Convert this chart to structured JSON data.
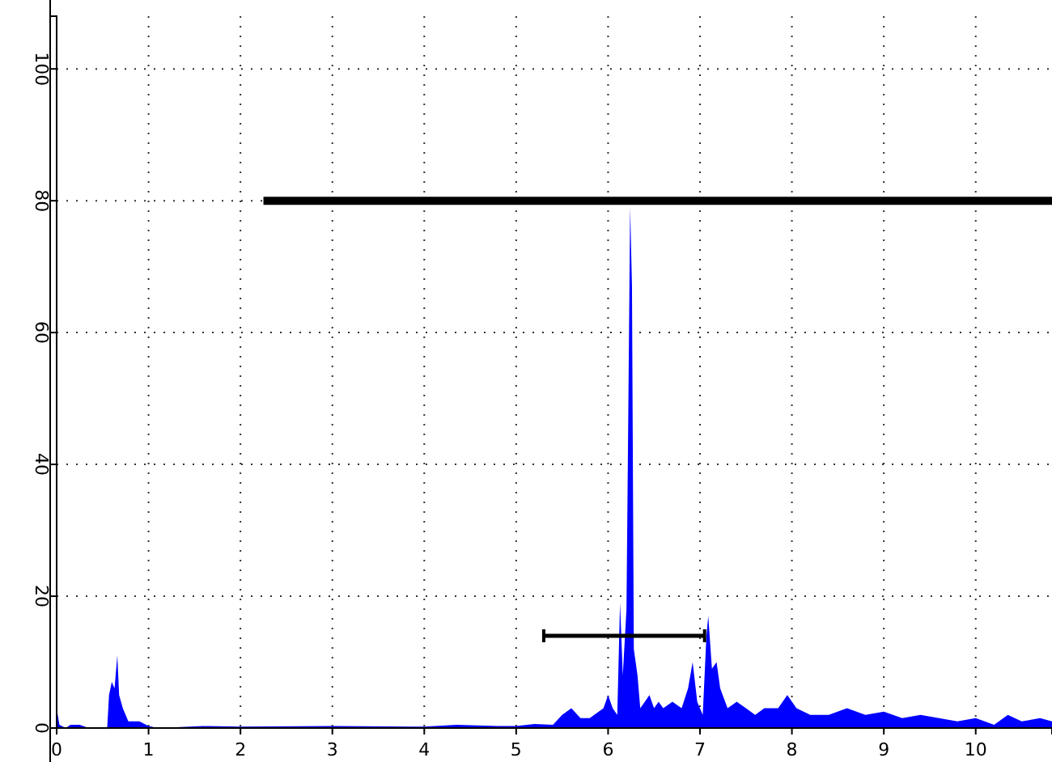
{
  "chart_data": {
    "type": "area",
    "xlim": [
      0,
      10.83
    ],
    "ylim": [
      0,
      108
    ],
    "xticks": [
      0,
      1,
      2,
      3,
      4,
      5,
      6,
      7,
      8,
      9,
      10
    ],
    "yticks": [
      0,
      20,
      40,
      60,
      80,
      100
    ],
    "grid": true,
    "series": [
      {
        "color": "#0000ff",
        "x": [
          0,
          0.03,
          0.1,
          0.15,
          0.25,
          0.35,
          0.55,
          0.57,
          0.6,
          0.63,
          0.66,
          0.68,
          0.72,
          0.78,
          0.9,
          1.0,
          1.1,
          1.6,
          2.0,
          3.0,
          4.0,
          4.35,
          4.8,
          5.0,
          5.2,
          5.4,
          5.5,
          5.6,
          5.7,
          5.8,
          5.95,
          6.0,
          6.05,
          6.1,
          6.13,
          6.16,
          6.2,
          6.22,
          6.24,
          6.26,
          6.28,
          6.32,
          6.35,
          6.4,
          6.45,
          6.5,
          6.55,
          6.6,
          6.7,
          6.8,
          6.87,
          6.92,
          6.97,
          7.03,
          7.07,
          7.09,
          7.13,
          7.18,
          7.22,
          7.3,
          7.4,
          7.5,
          7.6,
          7.7,
          7.85,
          7.95,
          8.05,
          8.2,
          8.4,
          8.6,
          8.8,
          9.0,
          9.2,
          9.4,
          9.6,
          9.8,
          10.0,
          10.2,
          10.35,
          10.5,
          10.7,
          10.83
        ],
        "values": [
          3,
          0.5,
          0,
          0.5,
          0.5,
          0,
          0,
          5,
          7,
          6,
          11,
          5,
          3,
          1,
          1,
          0.3,
          0,
          0.3,
          0.2,
          0.3,
          0.2,
          0.5,
          0.3,
          0.3,
          0.6,
          0.5,
          2,
          3,
          1.5,
          1.5,
          3,
          5,
          3,
          2,
          19,
          8,
          18,
          48,
          79,
          67,
          12,
          8,
          3,
          4,
          5,
          3,
          4,
          3,
          4,
          3,
          6,
          10,
          4,
          2,
          14,
          17,
          9,
          10,
          6,
          3,
          4,
          3,
          2,
          3,
          3,
          5,
          3,
          2,
          2,
          3,
          2,
          2.5,
          1.5,
          2,
          1.5,
          1,
          1.5,
          0.5,
          2,
          1,
          1.5,
          1
        ]
      },
      {
        "type": "line",
        "color": "#000000",
        "x": [
          2.25,
          10.83
        ],
        "values": [
          80,
          80
        ]
      },
      {
        "type": "line",
        "color": "#000000",
        "x": [
          5.3,
          7.05
        ],
        "values": [
          14,
          14
        ]
      }
    ]
  }
}
